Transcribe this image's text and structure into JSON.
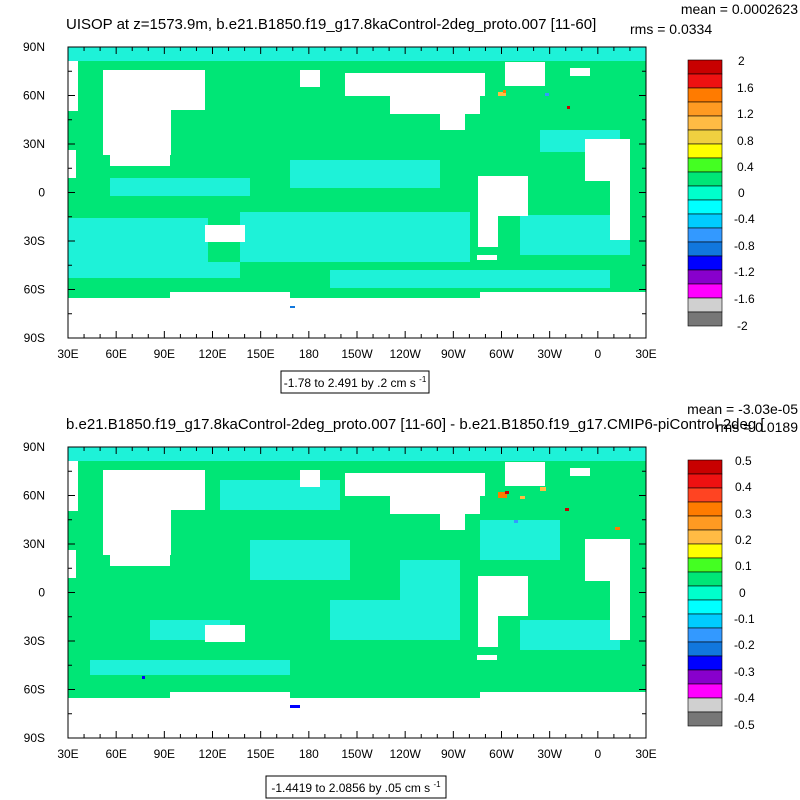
{
  "chart_data": [
    {
      "type": "heatmap",
      "title": "UISOP at z=1573.9m, b.e21.B1850.f19_g17.8kaControl-2deg_proto.007 [11-60]",
      "stats": {
        "mean": "mean = 0.0002623",
        "rms": "rms = 0.0334"
      },
      "x_ticks": [
        "30E",
        "60E",
        "90E",
        "120E",
        "150E",
        "180",
        "150W",
        "120W",
        "90W",
        "60W",
        "30W",
        "0",
        "30E"
      ],
      "y_ticks": [
        "90N",
        "60N",
        "30N",
        "0",
        "30S",
        "60S",
        "90S"
      ],
      "xlim": [
        30,
        390
      ],
      "ylim": [
        -90,
        90
      ],
      "colorbar": {
        "labels": [
          "2",
          "1.6",
          "1.2",
          "0.8",
          "0.4",
          "0",
          "-0.4",
          "-0.8",
          "-1.2",
          "-1.6",
          "-2"
        ],
        "colors": [
          "#c80000",
          "#ee1111",
          "#ff7b00",
          "#ff9a22",
          "#ffbb44",
          "#f0d040",
          "#ffff00",
          "#44ff22",
          "#00e676",
          "#00ffcc",
          "#00ffff",
          "#00ccff",
          "#3399ff",
          "#1177dd",
          "#0000ff",
          "#8800cc",
          "#ff00ff",
          "#d0d0d0",
          "#777777"
        ]
      },
      "range_label": "-1.78 to 2.491 by .2",
      "units": "cm s",
      "units_exponent": "-1"
    },
    {
      "type": "heatmap",
      "title": "b.e21.B1850.f19_g17.8kaControl-2deg_proto.007 [11-60] - b.e21.B1850.f19_g17.CMIP6-piControl-2deg [",
      "stats": {
        "mean": "mean = -3.03e-05",
        "rms": "rms = 0.0189"
      },
      "x_ticks": [
        "30E",
        "60E",
        "90E",
        "120E",
        "150E",
        "180",
        "150W",
        "120W",
        "90W",
        "60W",
        "30W",
        "0",
        "30E"
      ],
      "y_ticks": [
        "90N",
        "60N",
        "30N",
        "0",
        "30S",
        "60S",
        "90S"
      ],
      "xlim": [
        30,
        390
      ],
      "ylim": [
        -90,
        90
      ],
      "colorbar": {
        "labels": [
          "0.5",
          "0.4",
          "0.3",
          "0.2",
          "0.1",
          "0",
          "-0.1",
          "-0.2",
          "-0.3",
          "-0.4",
          "-0.5"
        ],
        "colors": [
          "#c80000",
          "#ee1111",
          "#ff4422",
          "#ff7b00",
          "#ff9a22",
          "#ffbb44",
          "#ffff00",
          "#44ff22",
          "#00e676",
          "#00ffcc",
          "#00ffff",
          "#00ccff",
          "#3399ff",
          "#1177dd",
          "#0000ff",
          "#8800cc",
          "#ff00ff",
          "#d0d0d0",
          "#777777"
        ]
      },
      "range_label": "-1.4419 to 2.0856 by .05",
      "units": "cm s",
      "units_exponent": "-1"
    }
  ]
}
